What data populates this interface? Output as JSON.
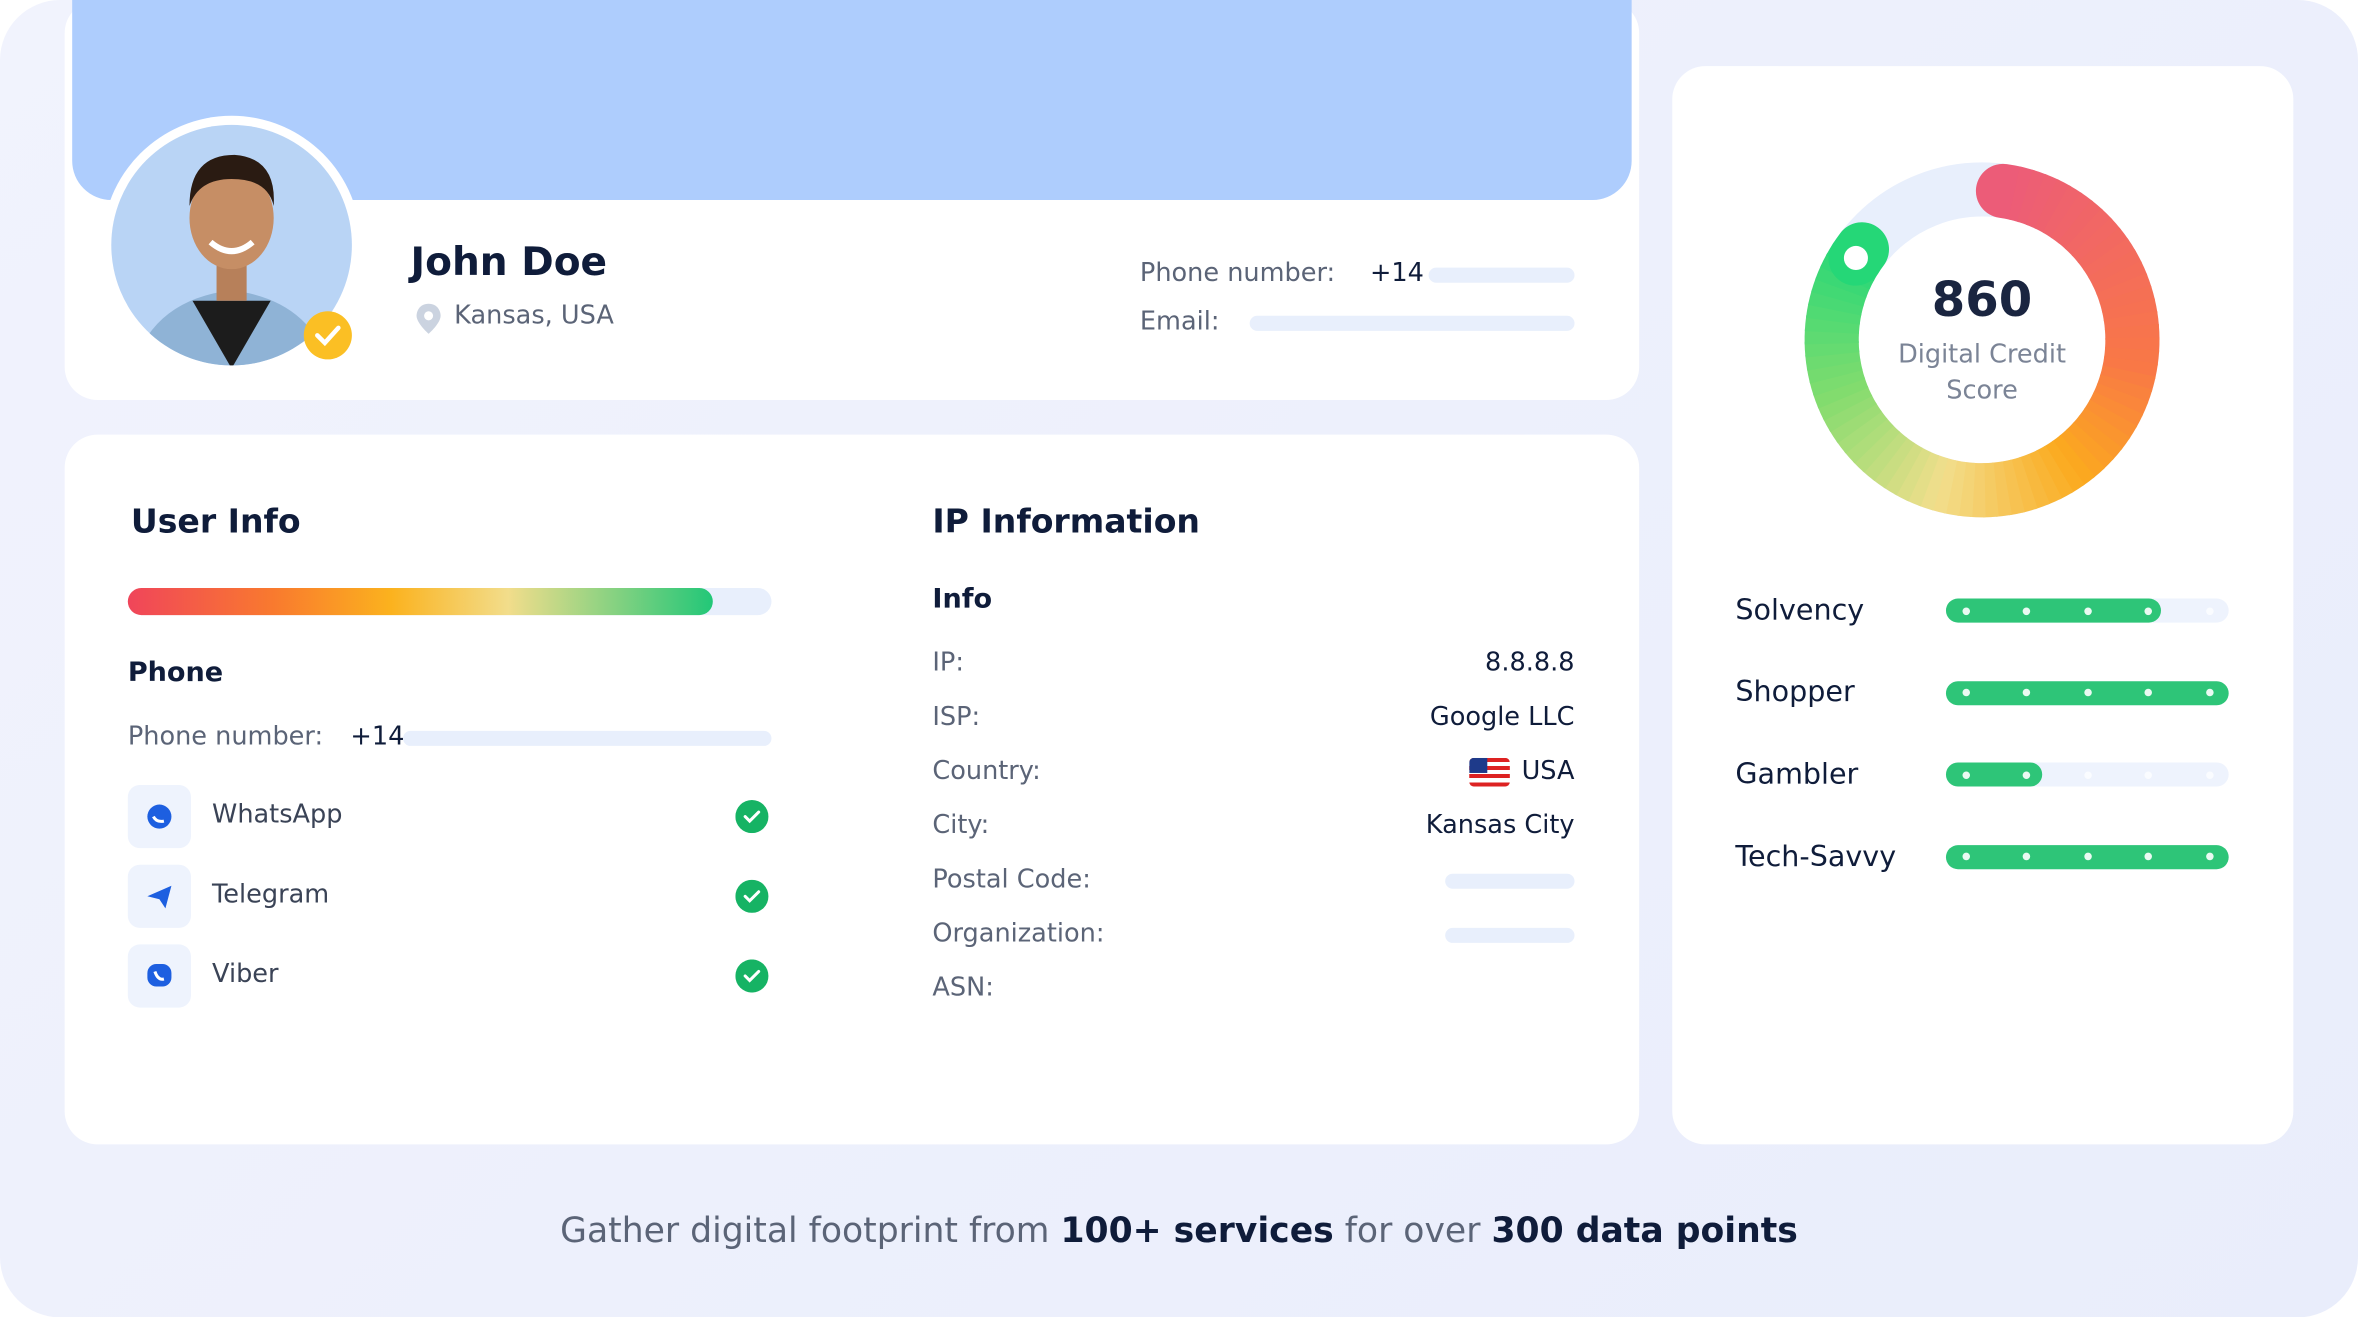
{
  "profile": {
    "name": "John Doe",
    "location": "Kansas, USA",
    "phone_label": "Phone number:",
    "phone_value": "+14",
    "email_label": "Email:"
  },
  "user_info": {
    "title": "User Info",
    "completeness": 91,
    "phone_title": "Phone",
    "phone_label": "Phone number:",
    "phone_value": "+14",
    "apps": [
      "WhatsApp",
      "Telegram",
      "Viber"
    ]
  },
  "ip_information": {
    "title": "IP Information",
    "subtitle": "Info",
    "rows": [
      {
        "label": "IP:",
        "value": "8.8.8.8"
      },
      {
        "label": "ISP:",
        "value": "Google LLC"
      },
      {
        "label": "Country:",
        "value": "USA",
        "flag": true
      },
      {
        "label": "City:",
        "value": "Kansas City"
      },
      {
        "label": "Postal Code:",
        "redacted": true
      },
      {
        "label": "Organization:",
        "redacted": true
      },
      {
        "label": "ASN:"
      }
    ]
  },
  "credit": {
    "score": 860,
    "label": "Digital Credit Score",
    "traits": [
      {
        "name": "Solvency",
        "level": 76
      },
      {
        "name": "Shopper",
        "level": 100
      },
      {
        "name": "Gambler",
        "level": 34
      },
      {
        "name": "Tech-Savvy",
        "level": 100
      }
    ]
  },
  "footer": {
    "parts": [
      "Gather digital footprint from",
      "100+ services",
      "for over",
      "300 data points"
    ]
  }
}
